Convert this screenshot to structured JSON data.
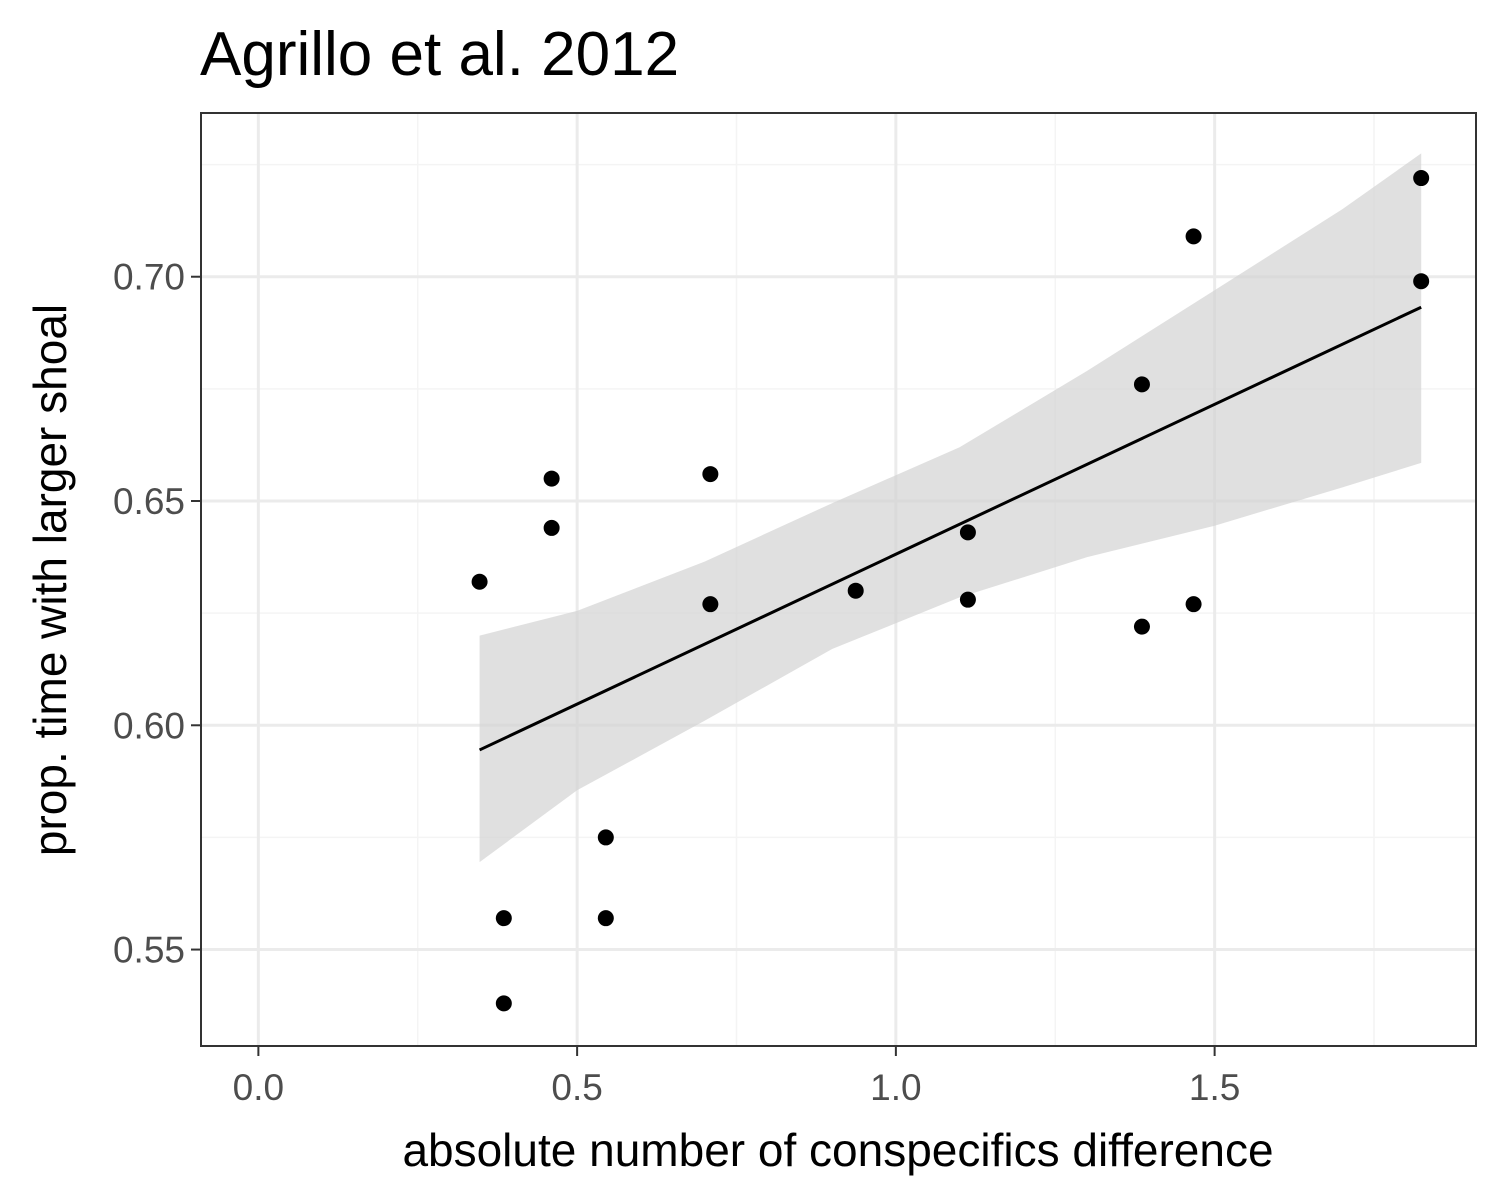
{
  "chart_data": {
    "type": "scatter",
    "title": "Agrillo et al. 2012",
    "xlabel": "absolute number of conspecifics difference",
    "ylabel": "prop. time with larger shoal",
    "xlim": [
      -0.09,
      1.91
    ],
    "ylim": [
      0.5285,
      0.7365
    ],
    "x_ticks": [
      0.0,
      0.5,
      1.0,
      1.5
    ],
    "x_tick_labels": [
      "0.0",
      "0.5",
      "1.0",
      "1.5"
    ],
    "x_minor_ticks": [
      0.25,
      0.75,
      1.25,
      1.75
    ],
    "y_ticks": [
      0.55,
      0.6,
      0.65,
      0.7
    ],
    "y_tick_labels": [
      "0.55",
      "0.60",
      "0.65",
      "0.70"
    ],
    "y_minor_ticks": [
      0.575,
      0.625,
      0.675,
      0.725
    ],
    "grid": true,
    "legend": "none",
    "colors": {
      "points": "#000000",
      "line": "#000000",
      "ribbon": "#d3d3d3",
      "grid_major": "#ebebeb",
      "grid_minor": "#f4f4f4",
      "panel_border": "#333333"
    },
    "points": [
      {
        "x": 0.347,
        "y": 0.632
      },
      {
        "x": 0.385,
        "y": 0.557
      },
      {
        "x": 0.385,
        "y": 0.538
      },
      {
        "x": 0.46,
        "y": 0.655
      },
      {
        "x": 0.46,
        "y": 0.644
      },
      {
        "x": 0.545,
        "y": 0.575
      },
      {
        "x": 0.545,
        "y": 0.557
      },
      {
        "x": 0.709,
        "y": 0.656
      },
      {
        "x": 0.709,
        "y": 0.627
      },
      {
        "x": 0.937,
        "y": 0.63
      },
      {
        "x": 1.113,
        "y": 0.643
      },
      {
        "x": 1.113,
        "y": 0.628
      },
      {
        "x": 1.386,
        "y": 0.676
      },
      {
        "x": 1.386,
        "y": 0.622
      },
      {
        "x": 1.467,
        "y": 0.709
      },
      {
        "x": 1.467,
        "y": 0.627
      },
      {
        "x": 1.824,
        "y": 0.722
      },
      {
        "x": 1.824,
        "y": 0.699
      }
    ],
    "fit_line": [
      {
        "x": 0.347,
        "y": 0.5945
      },
      {
        "x": 1.824,
        "y": 0.6932
      }
    ],
    "confidence_band": [
      {
        "x": 0.347,
        "lower": 0.5695,
        "upper": 0.62
      },
      {
        "x": 0.5,
        "lower": 0.5855,
        "upper": 0.6255
      },
      {
        "x": 0.7,
        "lower": 0.601,
        "upper": 0.6365
      },
      {
        "x": 0.9,
        "lower": 0.617,
        "upper": 0.6495
      },
      {
        "x": 1.1,
        "lower": 0.6285,
        "upper": 0.662
      },
      {
        "x": 1.3,
        "lower": 0.6375,
        "upper": 0.679
      },
      {
        "x": 1.5,
        "lower": 0.6445,
        "upper": 0.697
      },
      {
        "x": 1.7,
        "lower": 0.653,
        "upper": 0.715
      },
      {
        "x": 1.824,
        "lower": 0.6585,
        "upper": 0.7275
      }
    ]
  }
}
